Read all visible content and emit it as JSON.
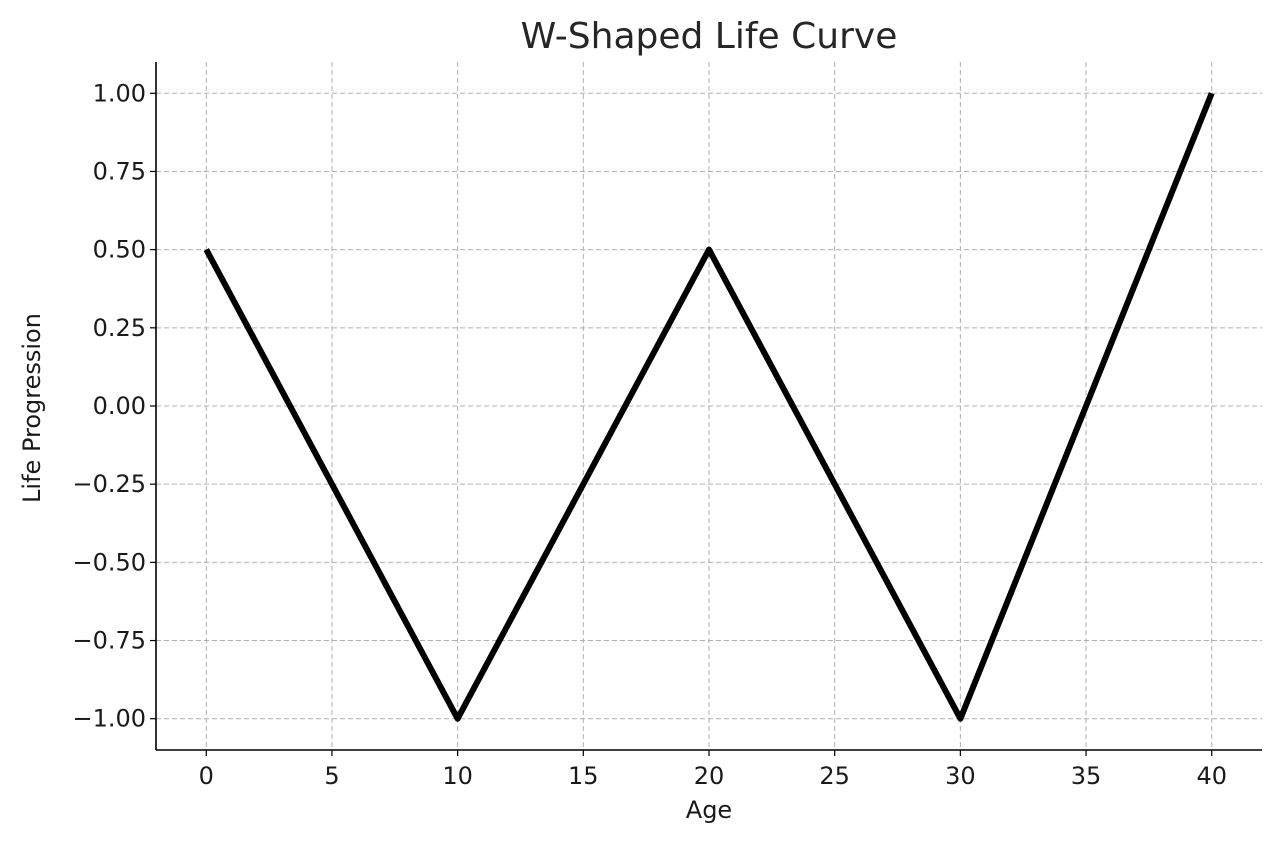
{
  "chart_data": {
    "type": "line",
    "title": "W-Shaped Life Curve",
    "xlabel": "Age",
    "ylabel": "Life Progression",
    "xlim": [
      -2,
      42
    ],
    "ylim": [
      -1.1,
      1.1
    ],
    "x_ticks": [
      0,
      5,
      10,
      15,
      20,
      25,
      30,
      35,
      40
    ],
    "x_tick_labels": [
      "0",
      "5",
      "10",
      "15",
      "20",
      "25",
      "30",
      "35",
      "40"
    ],
    "y_ticks": [
      1.0,
      0.75,
      0.5,
      0.25,
      0.0,
      -0.25,
      -0.5,
      -0.75,
      -1.0
    ],
    "y_tick_labels": [
      "1.00",
      "0.75",
      "0.50",
      "0.25",
      "0.00",
      "−0.25",
      "−0.50",
      "−0.75",
      "−1.00"
    ],
    "grid": true,
    "series": [
      {
        "x": [
          0,
          10,
          20,
          30,
          40
        ],
        "y": [
          0.5,
          -1.0,
          0.5,
          -1.0,
          1.0
        ],
        "color": "#000000"
      }
    ]
  }
}
